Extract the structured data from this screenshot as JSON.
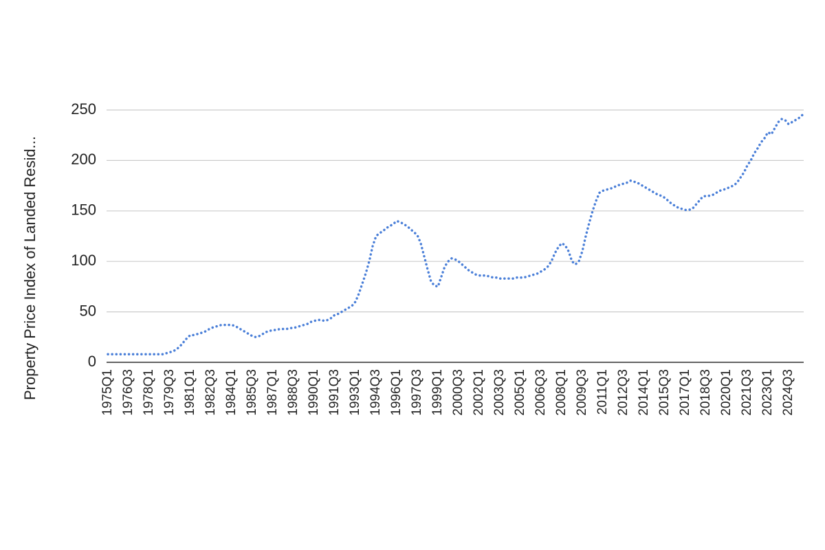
{
  "chart_data": {
    "type": "line",
    "y_label": "Property Price Index of Landed Resid...",
    "categories": [
      "1975Q1",
      null,
      null,
      null,
      null,
      null,
      "1976Q3",
      null,
      null,
      null,
      null,
      null,
      "1978Q1",
      null,
      null,
      null,
      null,
      null,
      "1979Q3",
      null,
      null,
      null,
      null,
      null,
      "1981Q1",
      null,
      null,
      null,
      null,
      null,
      "1982Q3",
      null,
      null,
      null,
      null,
      null,
      "1984Q1",
      null,
      null,
      null,
      null,
      null,
      "1985Q3",
      null,
      null,
      null,
      null,
      null,
      "1987Q1",
      null,
      null,
      null,
      null,
      null,
      "1988Q3",
      null,
      null,
      null,
      null,
      null,
      "1990Q1",
      null,
      null,
      null,
      null,
      null,
      "1991Q3",
      null,
      null,
      null,
      null,
      null,
      "1993Q1",
      null,
      null,
      null,
      null,
      null,
      "1994Q3",
      null,
      null,
      null,
      null,
      null,
      "1996Q1",
      null,
      null,
      null,
      null,
      null,
      "1997Q3",
      null,
      null,
      null,
      null,
      null,
      "1999Q1",
      null,
      null,
      null,
      null,
      null,
      "2000Q3",
      null,
      null,
      null,
      null,
      null,
      "2002Q1",
      null,
      null,
      null,
      null,
      null,
      "2003Q3",
      null,
      null,
      null,
      null,
      null,
      "2005Q1",
      null,
      null,
      null,
      null,
      null,
      "2006Q3",
      null,
      null,
      null,
      null,
      null,
      "2008Q1",
      null,
      null,
      null,
      null,
      null,
      "2009Q3",
      null,
      null,
      null,
      null,
      null,
      "2011Q1",
      null,
      null,
      null,
      null,
      null,
      "2012Q3",
      null,
      null,
      null,
      null,
      null,
      "2014Q1",
      null,
      null,
      null,
      null,
      null,
      "2015Q3",
      null,
      null,
      null,
      null,
      null,
      "2017Q1",
      null,
      null,
      null,
      null,
      null,
      "2018Q3",
      null,
      null,
      null,
      null,
      null,
      "2020Q1",
      null,
      null,
      null,
      null,
      null,
      "2021Q3",
      null,
      null,
      null,
      null,
      null,
      "2023Q1",
      null,
      null,
      null,
      null,
      null,
      "2024Q3",
      null,
      null,
      null,
      null
    ],
    "series": [
      {
        "color": "#4a7fd8",
        "values": [
          8,
          8,
          8,
          8,
          8,
          8,
          8,
          8,
          8,
          8,
          8,
          8,
          8,
          8,
          8,
          8,
          8,
          9,
          10,
          11,
          13,
          16,
          20,
          24,
          27,
          27,
          28,
          29,
          30,
          32,
          34,
          35,
          36,
          37,
          37,
          37,
          37,
          36,
          34,
          32,
          30,
          28,
          26,
          25,
          26,
          28,
          30,
          31,
          32,
          32,
          33,
          33,
          33,
          34,
          34,
          35,
          36,
          37,
          38,
          40,
          41,
          42,
          42,
          41,
          42,
          44,
          47,
          48,
          50,
          52,
          54,
          56,
          60,
          68,
          78,
          88,
          100,
          115,
          125,
          128,
          130,
          133,
          135,
          137,
          140,
          139,
          137,
          135,
          132,
          129,
          126,
          118,
          105,
          92,
          80,
          76,
          75,
          85,
          95,
          100,
          103,
          102,
          100,
          97,
          94,
          91,
          89,
          87,
          86,
          86,
          86,
          85,
          84,
          84,
          83,
          83,
          83,
          83,
          83,
          84,
          84,
          84,
          85,
          86,
          87,
          88,
          90,
          92,
          95,
          100,
          108,
          114,
          118,
          116,
          110,
          100,
          97,
          100,
          110,
          125,
          138,
          150,
          160,
          168,
          170,
          171,
          172,
          173,
          175,
          176,
          177,
          178,
          180,
          179,
          178,
          176,
          174,
          172,
          170,
          168,
          166,
          165,
          163,
          160,
          157,
          155,
          153,
          152,
          151,
          151,
          152,
          156,
          160,
          164,
          165,
          165,
          166,
          168,
          170,
          171,
          172,
          174,
          175,
          178,
          183,
          188,
          195,
          200,
          207,
          212,
          218,
          222,
          228,
          226,
          232,
          238,
          241,
          240,
          236,
          238,
          240,
          242,
          245
        ]
      }
    ],
    "ylim": [
      0,
      250
    ],
    "yticks": [
      0,
      50,
      100,
      150,
      200,
      250
    ],
    "grid": true
  }
}
